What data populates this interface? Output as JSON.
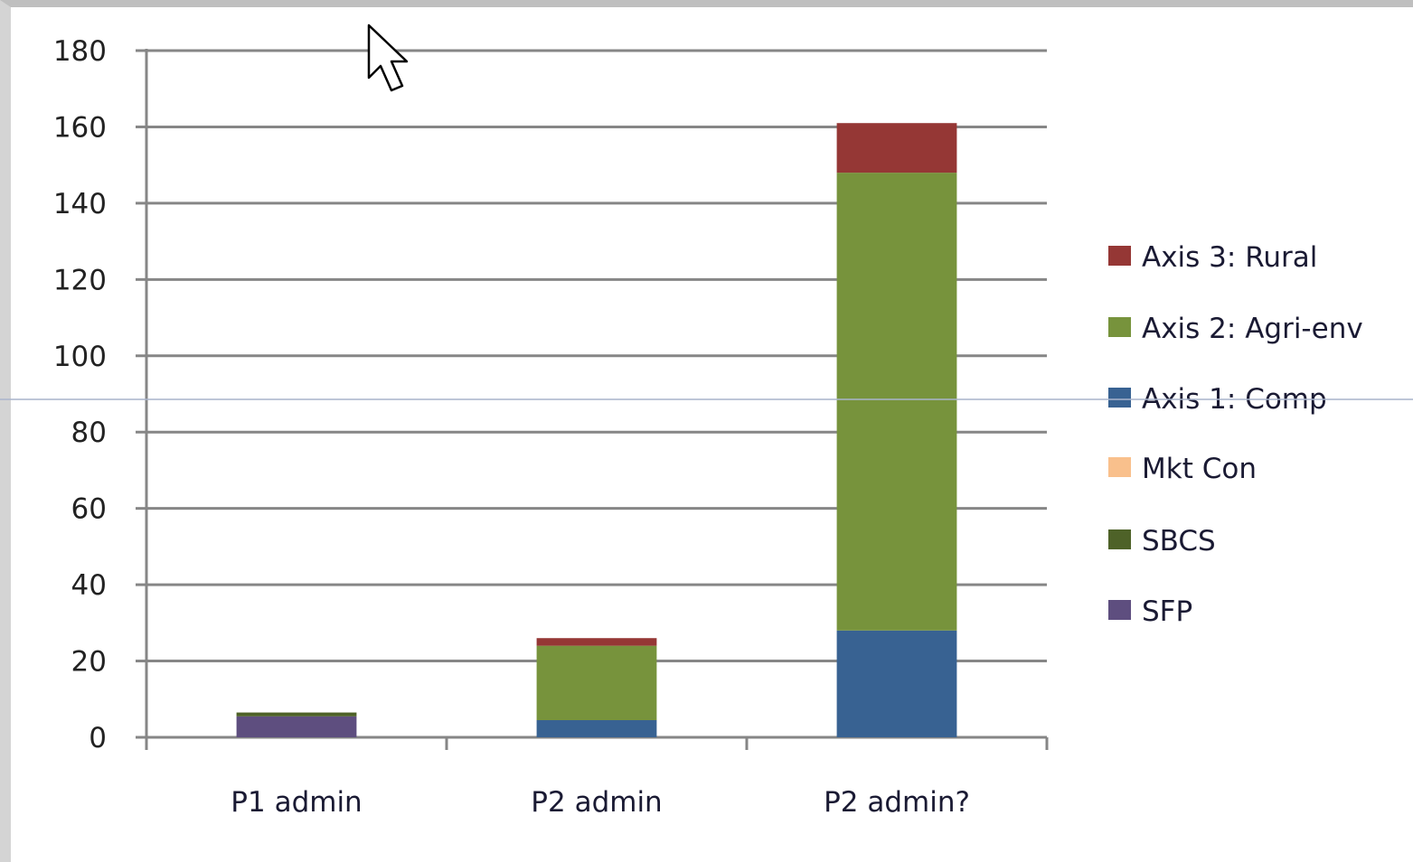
{
  "chart_data": {
    "type": "bar",
    "stacked": true,
    "categories": [
      "P1 admin",
      "P2 admin",
      "P2 admin?"
    ],
    "series": [
      {
        "name": "SFP",
        "color": "#5e4e7f",
        "values": [
          5.5,
          0,
          0
        ]
      },
      {
        "name": "SBCS",
        "color": "#4e6228",
        "values": [
          1,
          0,
          0
        ]
      },
      {
        "name": "Mkt Con",
        "color": "#f9c08c",
        "values": [
          0,
          0,
          0
        ]
      },
      {
        "name": "Axis 1: Comp",
        "color": "#386292",
        "values": [
          0,
          4.5,
          28
        ]
      },
      {
        "name": "Axis 2: Agri-env",
        "color": "#77933c",
        "values": [
          0,
          19.5,
          120
        ]
      },
      {
        "name": "Axis 3: Rural",
        "color": "#953735",
        "values": [
          0,
          2,
          13
        ]
      }
    ],
    "y_ticks": [
      "0",
      "20",
      "40",
      "60",
      "80",
      "100",
      "120",
      "140",
      "160",
      "180"
    ],
    "ylim": [
      0,
      180
    ],
    "grid": true,
    "legend_position": "right",
    "legend_order": [
      "Axis 3: Rural",
      "Axis 2: Agri-env",
      "Axis 1: Comp",
      "Mkt Con",
      "SBCS",
      "SFP"
    ]
  }
}
